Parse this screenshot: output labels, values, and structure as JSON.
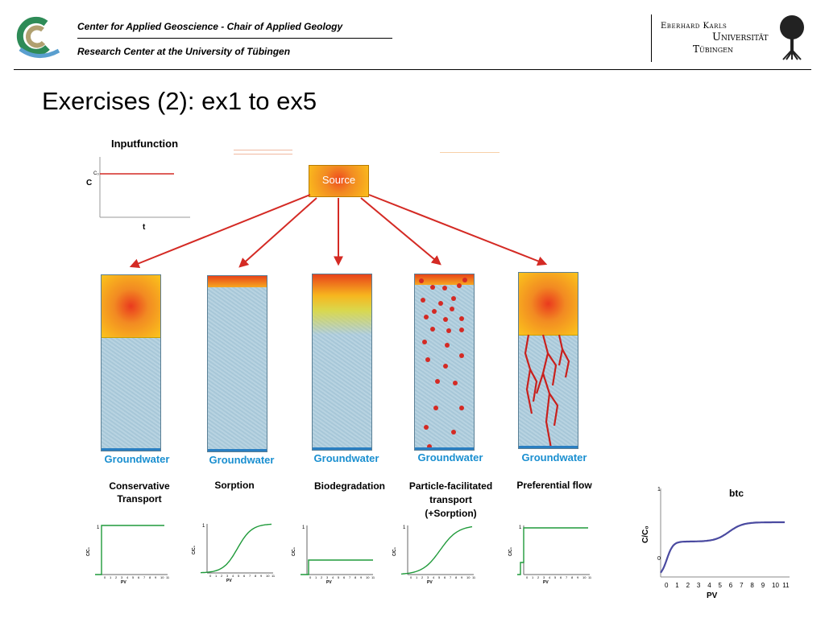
{
  "header": {
    "line1": "Center for Applied Geoscience - Chair of Applied Geology",
    "line2": "Research Center at the University of Tübingen",
    "uni_line1": "Eberhard Karls",
    "uni_line2": "Universität",
    "uni_line3": "Tübingen"
  },
  "title": "Exercises (2): ex1 to ex5",
  "input_function": {
    "title": "Inputfunction",
    "ylabel": "C",
    "c0_label": "C₀",
    "xlabel": "t"
  },
  "source_label": "Source",
  "columns": [
    {
      "groundwater": "Groundwater",
      "label": "Conservative\nTransport"
    },
    {
      "groundwater": "Groundwater",
      "label": "Sorption"
    },
    {
      "groundwater": "Groundwater",
      "label": "Biodegradation"
    },
    {
      "groundwater": "Groundwater",
      "label": "Particle-facilitated\ntransport\n(+Sorption)"
    },
    {
      "groundwater": "Groundwater",
      "label": "Preferential flow"
    }
  ],
  "small_plots": {
    "ylabel": "C/C₀",
    "xlabel": "PV",
    "ytick_top": "1",
    "xticks": [
      "0",
      "1",
      "2",
      "3",
      "4",
      "5",
      "6",
      "7",
      "8",
      "9",
      "10",
      "11"
    ]
  },
  "btc_plot": {
    "title": "btc",
    "ylabel": "C/C₀",
    "xlabel": "PV",
    "ytick_top": "1",
    "ytick_zero": "0",
    "xticks": [
      "0",
      "1",
      "2",
      "3",
      "4",
      "5",
      "6",
      "7",
      "8",
      "9",
      "10",
      "11"
    ]
  },
  "colors": {
    "arrow": "#d42a24",
    "groundwater_text": "#1a8fd0",
    "curve_green": "#1f9a3a",
    "curve_btc": "#4a4aa0"
  }
}
